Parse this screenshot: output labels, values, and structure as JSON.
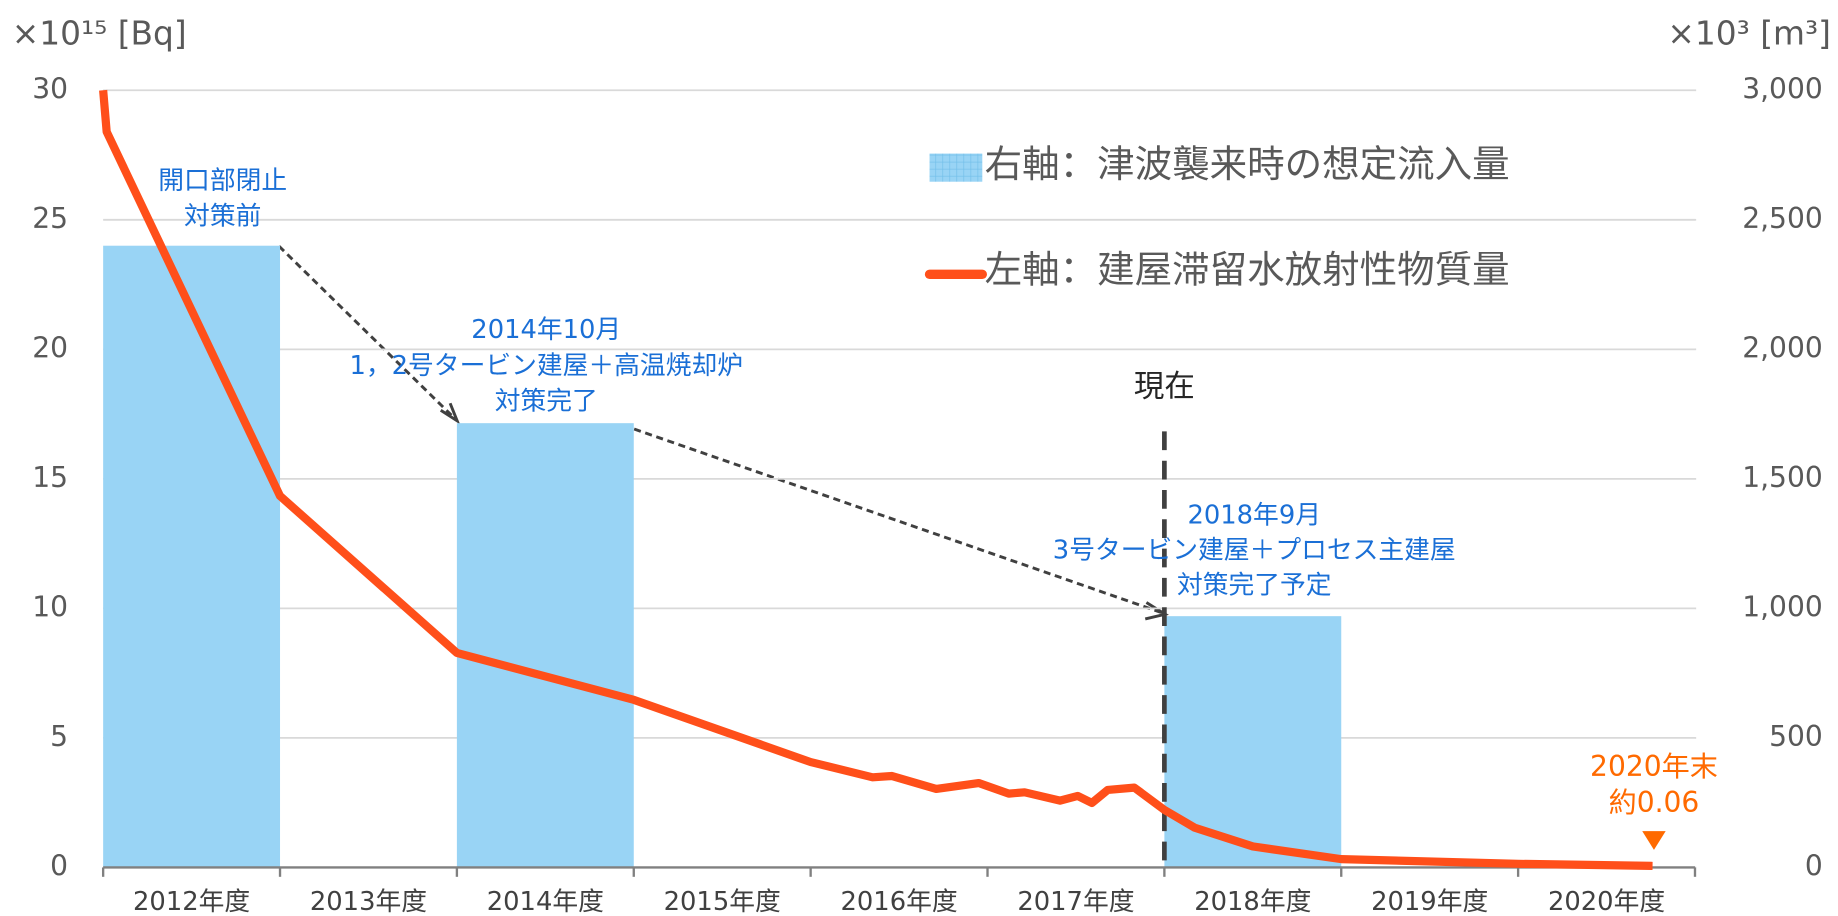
{
  "chart_data": {
    "type": "bar",
    "y_label": "×10¹⁵ [Bq]",
    "y2_label": "×10³ [m³]",
    "categories": [
      "2012年度",
      "2013年度",
      "2014年度",
      "2015年度",
      "2016年度",
      "2017年度",
      "2018年度",
      "2019年度",
      "2020年度"
    ],
    "series": [
      {
        "name": "右軸：津波襲来時の想定流入量",
        "type": "bar",
        "axis": "y2",
        "color": "#99d4f5",
        "values": [
          2400,
          null,
          1715,
          null,
          null,
          null,
          970,
          null,
          null
        ]
      },
      {
        "name": "左軸：建屋滞留水放射性物質量",
        "type": "line",
        "color": "#ff4f1a",
        "x": [
          2012.0,
          2012.02,
          2013.0,
          2014.0,
          2015.0,
          2016.0,
          2016.35,
          2016.46,
          2016.71,
          2016.95,
          2017.12,
          2017.21,
          2017.41,
          2017.51,
          2017.59,
          2017.68,
          2017.83,
          2018.0,
          2018.17,
          2018.5,
          2019.0,
          2020.0,
          2020.76
        ],
        "values": [
          30,
          28.4,
          14.34,
          8.28,
          6.47,
          4.07,
          3.48,
          3.53,
          3.03,
          3.26,
          2.85,
          2.9,
          2.58,
          2.76,
          2.49,
          2.99,
          3.08,
          2.22,
          1.54,
          0.81,
          0.32,
          0.14,
          0.06
        ]
      }
    ],
    "xlim": [
      2012,
      2021
    ],
    "ylim": [
      0,
      30
    ],
    "yticks": [
      0,
      5,
      10,
      15,
      20,
      25,
      30
    ],
    "y2lim": [
      0,
      3000
    ],
    "y2ticks": [
      0,
      500,
      {
        "value": 1000,
        "label": "1,000"
      },
      {
        "value": 1500,
        "label": "1,500"
      },
      {
        "value": 2000,
        "label": "2,000"
      },
      {
        "value": 2500,
        "label": "2,500"
      },
      {
        "value": 3000,
        "label": "3,000"
      }
    ],
    "grid": true,
    "legend": "upper right",
    "now_label": "現在",
    "annotations": [
      {
        "lines": [
          "開口部閉止",
          "対策前"
        ]
      },
      {
        "lines": [
          "2014年10月",
          "1，2号タービン建屋＋高温焼却炉",
          "対策完了"
        ]
      },
      {
        "lines": [
          "2018年9月",
          "3号タービン建屋＋プロセス主建屋",
          "対策完了予定"
        ]
      },
      {
        "lines": [
          "2020年末",
          "約0.06"
        ]
      }
    ]
  }
}
